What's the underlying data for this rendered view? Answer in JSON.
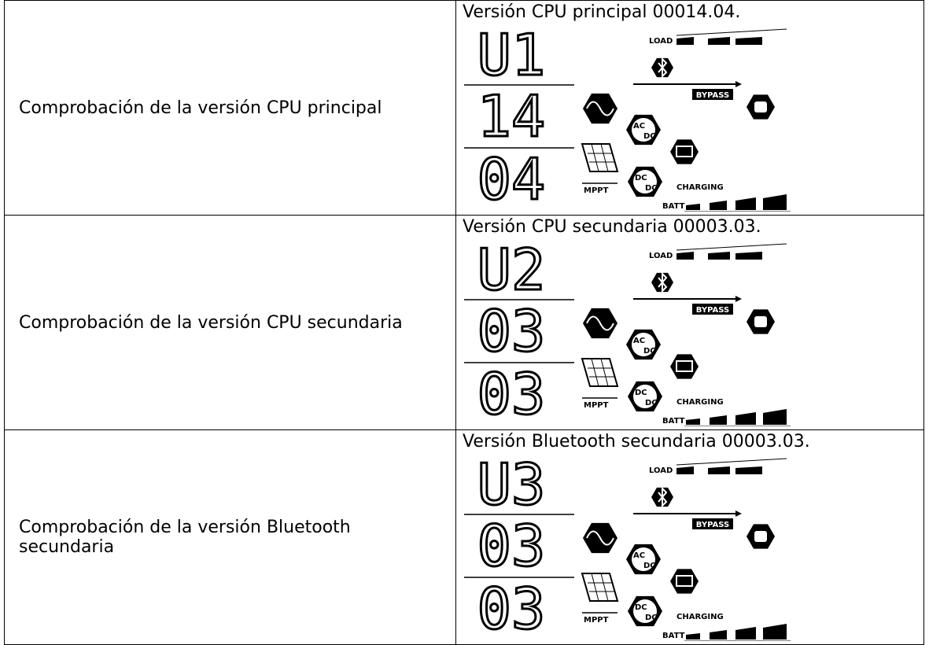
{
  "table": {
    "rows": [
      {
        "label": "Comprobación de la versión CPU principal",
        "caption": "Versión CPU principal 00014.04.",
        "display": [
          "U1",
          "14",
          "04"
        ]
      },
      {
        "label": "Comprobación de la versión CPU secundaria",
        "caption": "Versión CPU secundaria 00003.03.",
        "display": [
          "U2",
          "03",
          "03"
        ]
      },
      {
        "label": "Comprobación de la versión Bluetooth secundaria",
        "caption": "Versión Bluetooth secundaria 00003.03.",
        "display": [
          "U3",
          "03",
          "03"
        ]
      }
    ]
  },
  "lcd_labels": {
    "load": "LOAD",
    "bypass": "BYPASS",
    "ac": "AC",
    "dc": "DC",
    "mppt": "MPPT",
    "charging": "CHARGING",
    "batt": "BATT"
  }
}
